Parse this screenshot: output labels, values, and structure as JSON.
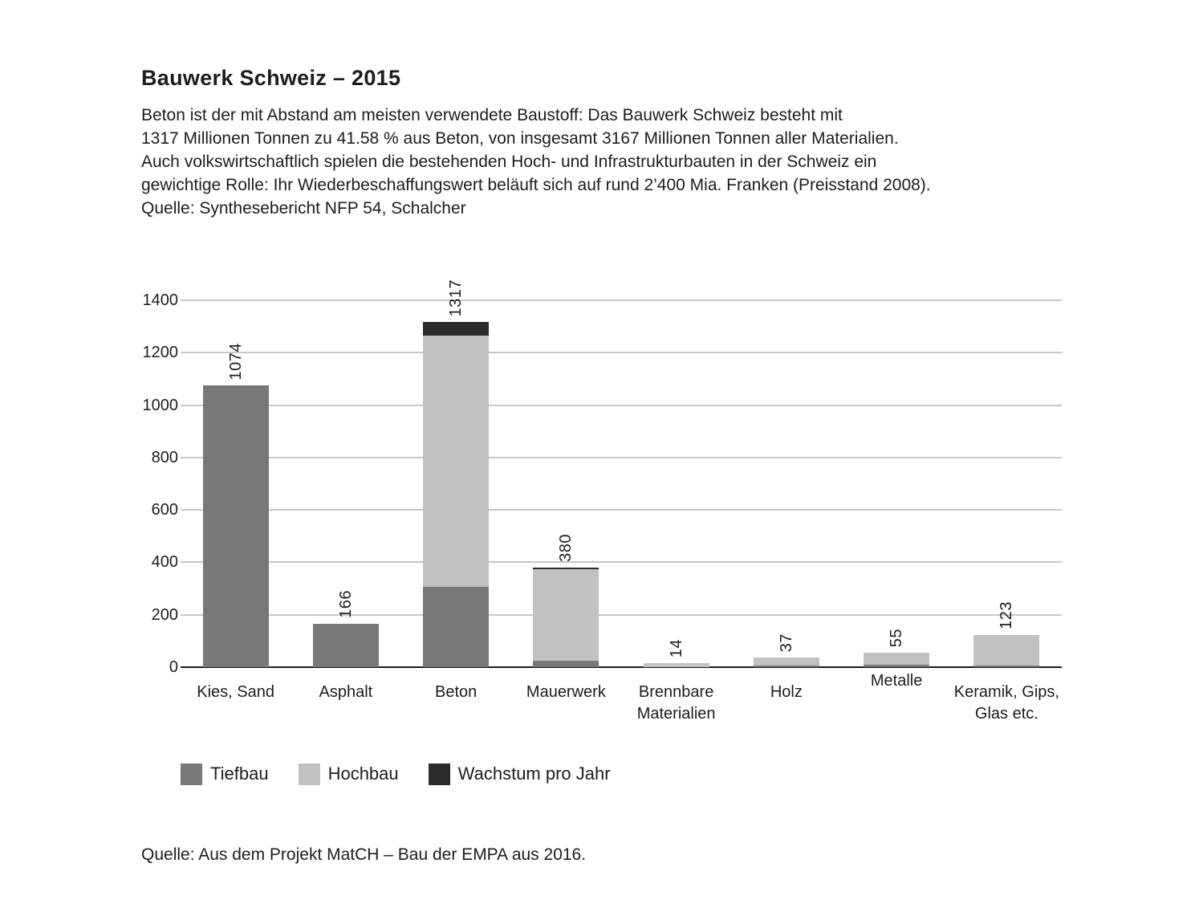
{
  "title": "Bauwerk Schweiz – 2015",
  "intro": {
    "lines": [
      "Beton ist der mit Abstand am meisten verwendete Baustoff: Das Bauwerk Schweiz besteht mit",
      "1317 Millionen Tonnen zu 41.58 % aus Beton, von insgesamt 3167 Millionen Tonnen aller Materialien.",
      "Auch volkswirtschaftlich spielen die bestehenden Hoch- und Infrastrukturbauten in der Schweiz ein",
      "gewichtige Rolle: Ihr Wiederbeschaffungswert beläuft sich auf rund 2’400 Mia. Franken (Preisstand 2008).",
      "Quelle: Synthesebericht NFP 54, Schalcher"
    ]
  },
  "chart_data": {
    "type": "bar",
    "stacked": true,
    "title": "",
    "xlabel": "",
    "ylabel": "",
    "categories": [
      [
        "Kies, Sand"
      ],
      [
        "Asphalt"
      ],
      [
        "Beton"
      ],
      [
        "Mauerwerk"
      ],
      [
        "Brennbare",
        "Materialien"
      ],
      [
        "Holz"
      ],
      [
        "Metalle"
      ],
      [
        "Keramik, Gips,",
        "Glas etc."
      ]
    ],
    "totals": [
      1074,
      166,
      1317,
      380,
      14,
      37,
      55,
      123
    ],
    "bar_labels": [
      "1074",
      "166",
      "1317",
      "380",
      "14",
      "37",
      "55",
      "123"
    ],
    "series": [
      {
        "name": "Tiefbau",
        "color": "#787878",
        "values": [
          1074,
          166,
          305,
          25,
          0,
          5,
          10,
          6
        ]
      },
      {
        "name": "Hochbau",
        "color": "#c2c2c2",
        "values": [
          0,
          0,
          960,
          348,
          14,
          32,
          45,
          117
        ]
      },
      {
        "name": "Wachstum pro Jahr",
        "color": "#2b2b2b",
        "values": [
          0,
          0,
          52,
          7,
          0,
          0,
          0,
          0
        ]
      }
    ],
    "yticks": [
      0,
      200,
      400,
      600,
      800,
      1000,
      1200,
      1400
    ],
    "ylim": [
      0,
      1400
    ],
    "grid": true,
    "legend_position": "bottom",
    "raised_category_labels": [
      6
    ]
  },
  "legend": {
    "items": [
      {
        "label": "Tiefbau",
        "color": "#787878"
      },
      {
        "label": "Hochbau",
        "color": "#c2c2c2"
      },
      {
        "label": "Wachstum pro Jahr",
        "color": "#2b2b2b"
      }
    ]
  },
  "source": "Quelle: Aus dem Projekt MatCH – Bau der EMPA aus 2016.",
  "colors": {
    "text": "#1d1d1b",
    "gridline": "#c7c7c7",
    "axis": "#1a1a1a",
    "background": "#ffffff"
  }
}
